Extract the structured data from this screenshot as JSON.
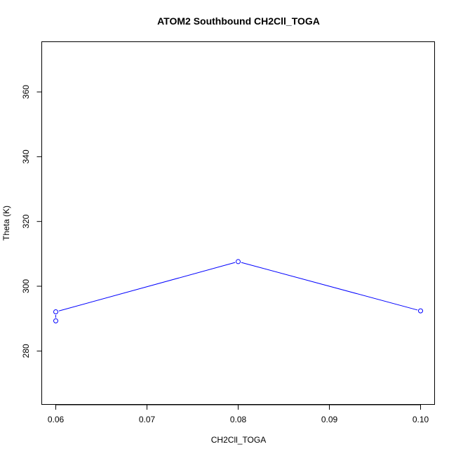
{
  "chart_data": {
    "type": "line",
    "title": "ATOM2 Southbound CH2Cll_TOGA",
    "xlabel": "CH2Cll_TOGA",
    "ylabel": "Theta (K)",
    "xlim": [
      0.06,
      0.1
    ],
    "ylim": [
      263.5,
      375.5
    ],
    "x_ticks": [
      "0.06",
      "0.07",
      "0.08",
      "0.09",
      "0.10"
    ],
    "x_tick_values": [
      0.06,
      0.07,
      0.08,
      0.09,
      0.1
    ],
    "y_ticks": [
      "280",
      "300",
      "320",
      "340",
      "360"
    ],
    "y_tick_values": [
      280,
      300,
      320,
      340,
      360
    ],
    "grid": false,
    "legend": "none",
    "series": [
      {
        "color": "#0000ff",
        "points": [
          {
            "x": 0.06,
            "y": 289.3
          },
          {
            "x": 0.06,
            "y": 292.1
          },
          {
            "x": 0.08,
            "y": 307.6
          },
          {
            "x": 0.1,
            "y": 292.4
          }
        ]
      }
    ]
  }
}
